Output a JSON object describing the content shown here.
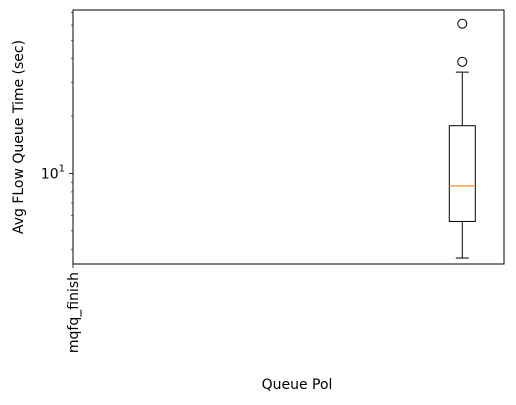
{
  "chart_data": {
    "type": "box",
    "title": "",
    "xlabel": "Queue Pol",
    "ylabel": "Avg FLow Queue Time (sec)",
    "yscale": "log",
    "ylim": [
      3.35,
      72
    ],
    "y_tick_labels": [
      {
        "value": 10,
        "base": "10",
        "exp": "1"
      }
    ],
    "categories": [
      "mqfq_finish"
    ],
    "boxes": [
      {
        "category": "mqfq_finish",
        "position": 1,
        "whisker_low": 3.6,
        "q1": 5.6,
        "median": 8.6,
        "q3": 17.8,
        "whisker_high": 34,
        "outliers": [
          38.5,
          61
        ]
      }
    ],
    "xlim": [
      -7.4,
      1.9
    ],
    "grid": false,
    "colors": {
      "box": "#000000",
      "median": "#ff7f0e"
    }
  }
}
